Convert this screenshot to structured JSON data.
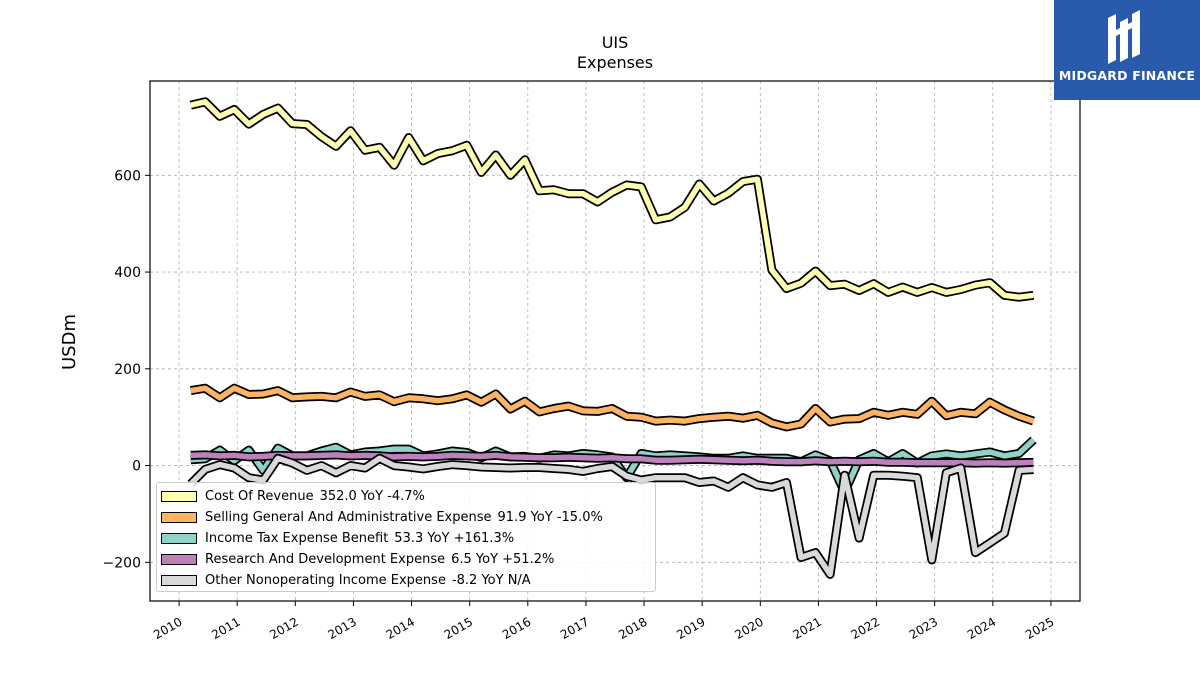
{
  "brand": {
    "name": "MIDGARD FINANCE",
    "background": "#2a5aab"
  },
  "chart_data": {
    "type": "line",
    "title": "UIS",
    "subtitle": "Expenses",
    "ylabel": "USDm",
    "xlabel": "",
    "xlim": [
      2009.5,
      2025.5
    ],
    "ylim": [
      -280,
      795
    ],
    "xticks": [
      2010,
      2011,
      2012,
      2013,
      2014,
      2015,
      2016,
      2017,
      2018,
      2019,
      2020,
      2021,
      2022,
      2023,
      2024,
      2025
    ],
    "yticks": [
      -200,
      0,
      200,
      400,
      600
    ],
    "ytick_labels": [
      "−200",
      "0",
      "200",
      "400",
      "600"
    ],
    "grid": true,
    "legend_position": "lower-left",
    "series": [
      {
        "name": "Cost Of Revenue",
        "summary": "352.0 YoY -4.7%",
        "color": "#ffffb3",
        "x_start": 2010.2,
        "x_step": 0.25,
        "values": [
          745,
          752,
          722,
          736,
          706,
          726,
          739,
          707,
          705,
          680,
          660,
          692,
          652,
          658,
          621,
          678,
          630,
          645,
          651,
          662,
          606,
          642,
          600,
          632,
          568,
          570,
          562,
          562,
          545,
          565,
          580,
          576,
          508,
          514,
          534,
          582,
          547,
          563,
          587,
          592,
          404,
          366,
          377,
          402,
          372,
          375,
          362,
          376,
          358,
          369,
          358,
          368,
          358,
          364,
          373,
          378,
          352,
          348,
          352
        ]
      },
      {
        "name": "Selling General And Administrative Expense",
        "summary": "91.9 YoY -15.0%",
        "color": "#fdb462",
        "x_start": 2010.2,
        "x_step": 0.25,
        "values": [
          155,
          160,
          140,
          160,
          147,
          148,
          155,
          140,
          142,
          143,
          140,
          152,
          143,
          146,
          132,
          140,
          138,
          134,
          138,
          146,
          131,
          148,
          117,
          133,
          111,
          118,
          123,
          113,
          112,
          118,
          102,
          100,
          92,
          94,
          92,
          97,
          100,
          102,
          98,
          104,
          88,
          80,
          86,
          118,
          90,
          96,
          97,
          110,
          104,
          110,
          106,
          133,
          103,
          110,
          107,
          131,
          115,
          102,
          92
        ]
      },
      {
        "name": "Income Tax Expense Benefit",
        "summary": "53.3 YoY +161.3%",
        "color": "#8dd3c7",
        "x_start": 2010.2,
        "x_step": 0.25,
        "values": [
          12,
          14,
          32,
          10,
          32,
          -10,
          36,
          20,
          20,
          30,
          38,
          22,
          28,
          30,
          34,
          34,
          20,
          24,
          30,
          27,
          16,
          30,
          18,
          19,
          15,
          22,
          20,
          25,
          22,
          18,
          -25,
          25,
          20,
          22,
          20,
          18,
          15,
          15,
          20,
          15,
          15,
          15,
          8,
          22,
          10,
          -55,
          12,
          25,
          8,
          25,
          5,
          20,
          24,
          20,
          24,
          28,
          20,
          25,
          53
        ]
      },
      {
        "name": "Research And Development Expense",
        "summary": "6.5 YoY +51.2%",
        "color": "#bc80bd",
        "x_start": 2010.2,
        "x_step": 0.25,
        "values": [
          21,
          22,
          20,
          21,
          18,
          19,
          21,
          20,
          20,
          21,
          22,
          20,
          21,
          20,
          18,
          19,
          18,
          19,
          21,
          20,
          19,
          21,
          18,
          17,
          16,
          16,
          17,
          16,
          15,
          16,
          14,
          14,
          11,
          11,
          12,
          13,
          12,
          11,
          10,
          11,
          9,
          8,
          8,
          10,
          8,
          9,
          8,
          9,
          7,
          7,
          6,
          6,
          6,
          6,
          5,
          6,
          5,
          6,
          6.5
        ]
      },
      {
        "name": "Other Nonoperating Income Expense",
        "summary": "-8.2 YoY N/A",
        "color": "#d9d9d9",
        "x_start": 2010.2,
        "x_step": 0.25,
        "values": [
          -38,
          -8,
          2,
          -5,
          -25,
          -30,
          15,
          5,
          -10,
          0,
          -15,
          0,
          -5,
          15,
          0,
          -3,
          -7,
          -2,
          2,
          0,
          -3,
          -4,
          -5,
          -4,
          -4,
          -6,
          -8,
          -12,
          -6,
          -2,
          -22,
          -30,
          -25,
          -25,
          -25,
          -35,
          -32,
          -45,
          -25,
          -40,
          -45,
          -35,
          -190,
          -180,
          -225,
          -20,
          -150,
          -20,
          -20,
          -22,
          -25,
          -195,
          -15,
          -5,
          -180,
          -160,
          -140,
          -10,
          -8.2
        ]
      }
    ]
  }
}
